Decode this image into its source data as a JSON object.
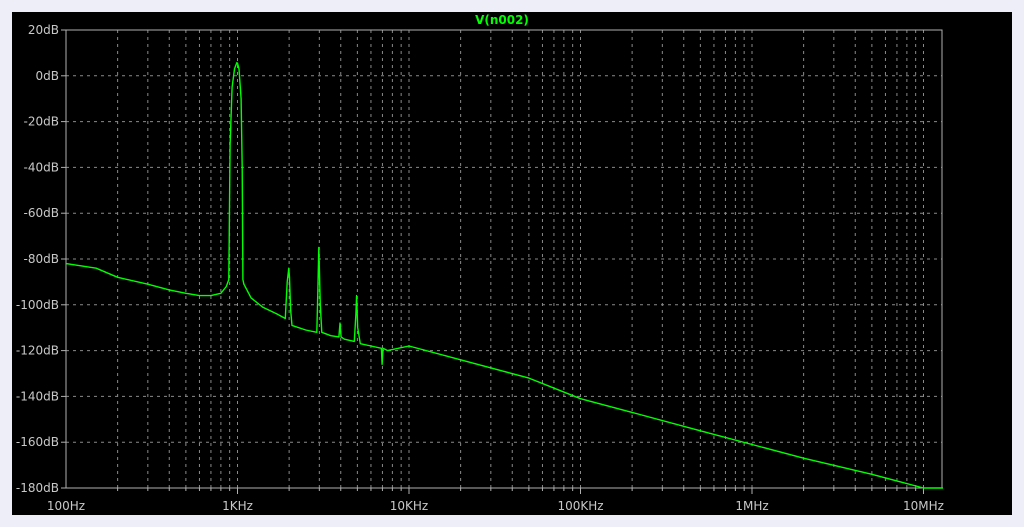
{
  "chart_data": {
    "type": "line",
    "title": "V(n002)",
    "xlabel": "",
    "ylabel": "",
    "x_scale": "log",
    "xlim": [
      100,
      13000000
    ],
    "ylim": [
      -180,
      20
    ],
    "grid": true,
    "x_tick_labels": [
      {
        "value": 100,
        "label": "100Hz"
      },
      {
        "value": 1000,
        "label": "1KHz"
      },
      {
        "value": 10000,
        "label": "10KHz"
      },
      {
        "value": 100000,
        "label": "100KHz"
      },
      {
        "value": 1000000,
        "label": "1MHz"
      },
      {
        "value": 10000000,
        "label": "10MHz"
      }
    ],
    "y_tick_labels": [
      {
        "value": 20,
        "label": "20dB"
      },
      {
        "value": 0,
        "label": "0dB"
      },
      {
        "value": -20,
        "label": "-20dB"
      },
      {
        "value": -40,
        "label": "-40dB"
      },
      {
        "value": -60,
        "label": "-60dB"
      },
      {
        "value": -80,
        "label": "-80dB"
      },
      {
        "value": -100,
        "label": "-100dB"
      },
      {
        "value": -120,
        "label": "-120dB"
      },
      {
        "value": -140,
        "label": "-140dB"
      },
      {
        "value": -160,
        "label": "-160dB"
      },
      {
        "value": -180,
        "label": "-180dB"
      }
    ],
    "series": [
      {
        "color": "#00ff00",
        "x": [
          100,
          150,
          200,
          300,
          400,
          500,
          600,
          700,
          800,
          860,
          890,
          905,
          930,
          960,
          990,
          1000,
          1020,
          1050,
          1065,
          1075,
          1090,
          1200,
          1400,
          1700,
          1900,
          1950,
          1990,
          2010,
          2040,
          2080,
          2500,
          2900,
          2940,
          2980,
          3040,
          3100,
          3500,
          3900,
          3960,
          4020,
          4200,
          4800,
          4900,
          4950,
          5020,
          5200,
          6000,
          6900,
          6970,
          7050,
          7500,
          10000,
          20000,
          50000,
          100000,
          200000,
          500000,
          1000000,
          2000000,
          5000000,
          10000000,
          13000000
        ],
        "y": [
          -82,
          -84,
          -88,
          -91,
          -93.5,
          -95,
          -96,
          -96,
          -95,
          -92,
          -89,
          -30,
          -5,
          3,
          5.7,
          5.5,
          3,
          -10,
          -40,
          -89,
          -91,
          -97,
          -101,
          -104,
          -106,
          -90,
          -84,
          -88,
          -102,
          -109,
          -111,
          -112,
          -95,
          -75,
          -100,
          -112,
          -113.5,
          -114,
          -108,
          -114,
          -115,
          -116,
          -104,
          -96,
          -110,
          -117,
          -118,
          -119,
          -126,
          -119,
          -120,
          -118,
          -124,
          -132,
          -141,
          -147,
          -155,
          -161,
          -167,
          -174,
          -180,
          -180
        ]
      }
    ]
  }
}
